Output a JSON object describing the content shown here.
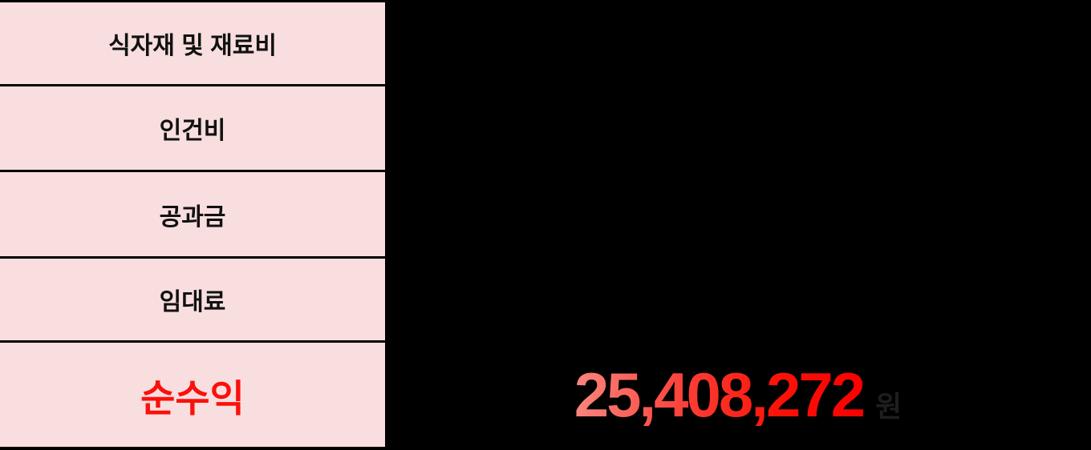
{
  "chart_data": {
    "type": "table",
    "title": "",
    "rows": [
      {
        "label": "식자재 및 재료비",
        "value": null
      },
      {
        "label": "인건비",
        "value": null
      },
      {
        "label": "공과금",
        "value": null
      },
      {
        "label": "임대료",
        "value": null
      },
      {
        "label": "순수익",
        "value": "25,408,272 원"
      }
    ],
    "layout": "left column of category cells; values area on black background; only net profit value visible"
  },
  "result": {
    "amount": "25,408,272",
    "unit": "원"
  },
  "colors": {
    "background": "#000000",
    "cell_pink": "#f8dede",
    "border_black": "#000000",
    "label_text": "#111111",
    "net_profit_red": "#fb100c",
    "amount_gradient_start": "#fa867e",
    "amount_gradient_end": "#fb0000",
    "unit_dark_gray": "#1e1e1e"
  }
}
